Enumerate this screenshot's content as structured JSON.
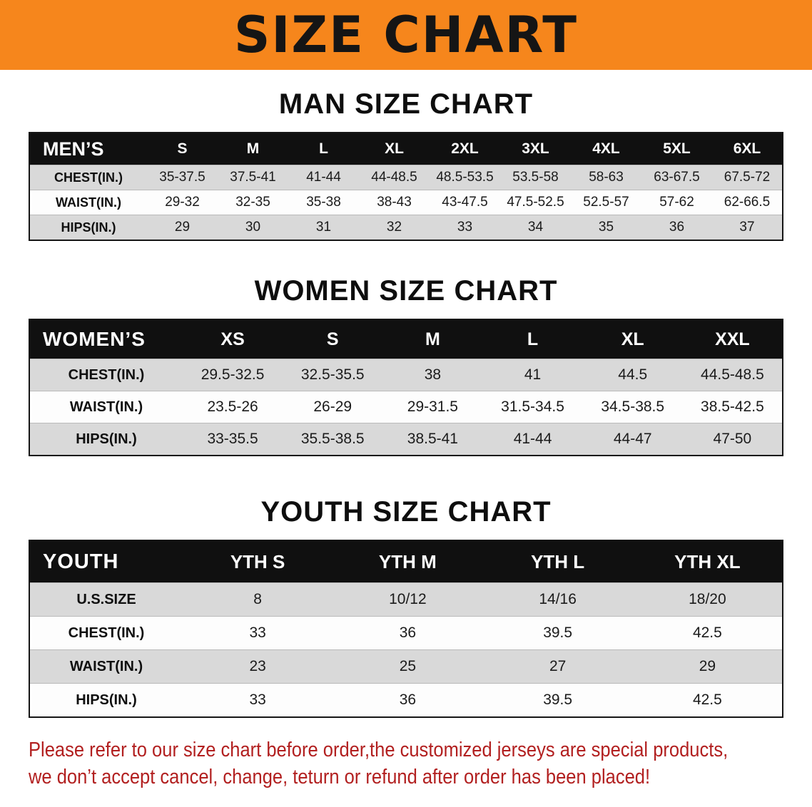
{
  "banner": {
    "title": "SIZE CHART"
  },
  "footer": {
    "line1": "Please refer to our size chart before order,the customized jerseys are special products,",
    "line2": "we don’t accept cancel, change, teturn or refund after order has been placed!"
  },
  "colors": {
    "banner_bg": "#F6861C",
    "header_bg": "#101010",
    "row_gray": "#D9D9D9",
    "row_white": "#FDFDFD",
    "footer_text": "#B22020"
  },
  "chart_data": [
    {
      "type": "table",
      "title": "MAN SIZE CHART",
      "columns": [
        "MEN’S",
        "S",
        "M",
        "L",
        "XL",
        "2XL",
        "3XL",
        "4XL",
        "5XL",
        "6XL"
      ],
      "rows": [
        [
          "CHEST(IN.)",
          "35-37.5",
          "37.5-41",
          "41-44",
          "44-48.5",
          "48.5-53.5",
          "53.5-58",
          "58-63",
          "63-67.5",
          "67.5-72"
        ],
        [
          "WAIST(IN.)",
          "29-32",
          "32-35",
          "35-38",
          "38-43",
          "43-47.5",
          "47.5-52.5",
          "52.5-57",
          "57-62",
          "62-66.5"
        ],
        [
          "HIPS(IN.)",
          "29",
          "30",
          "31",
          "32",
          "33",
          "34",
          "35",
          "36",
          "37"
        ]
      ]
    },
    {
      "type": "table",
      "title": "WOMEN SIZE CHART",
      "columns": [
        "WOMEN’S",
        "XS",
        "S",
        "M",
        "L",
        "XL",
        "XXL"
      ],
      "rows": [
        [
          "CHEST(IN.)",
          "29.5-32.5",
          "32.5-35.5",
          "38",
          "41",
          "44.5",
          "44.5-48.5"
        ],
        [
          "WAIST(IN.)",
          "23.5-26",
          "26-29",
          "29-31.5",
          "31.5-34.5",
          "34.5-38.5",
          "38.5-42.5"
        ],
        [
          "HIPS(IN.)",
          "33-35.5",
          "35.5-38.5",
          "38.5-41",
          "41-44",
          "44-47",
          "47-50"
        ]
      ]
    },
    {
      "type": "table",
      "title": "YOUTH SIZE CHART",
      "columns": [
        "YOUTH",
        "YTH S",
        "YTH M",
        "YTH L",
        "YTH XL"
      ],
      "rows": [
        [
          "U.S.SIZE",
          "8",
          "10/12",
          "14/16",
          "18/20"
        ],
        [
          "CHEST(IN.)",
          "33",
          "36",
          "39.5",
          "42.5"
        ],
        [
          "WAIST(IN.)",
          "23",
          "25",
          "27",
          "29"
        ],
        [
          "HIPS(IN.)",
          "33",
          "36",
          "39.5",
          "42.5"
        ]
      ]
    }
  ]
}
